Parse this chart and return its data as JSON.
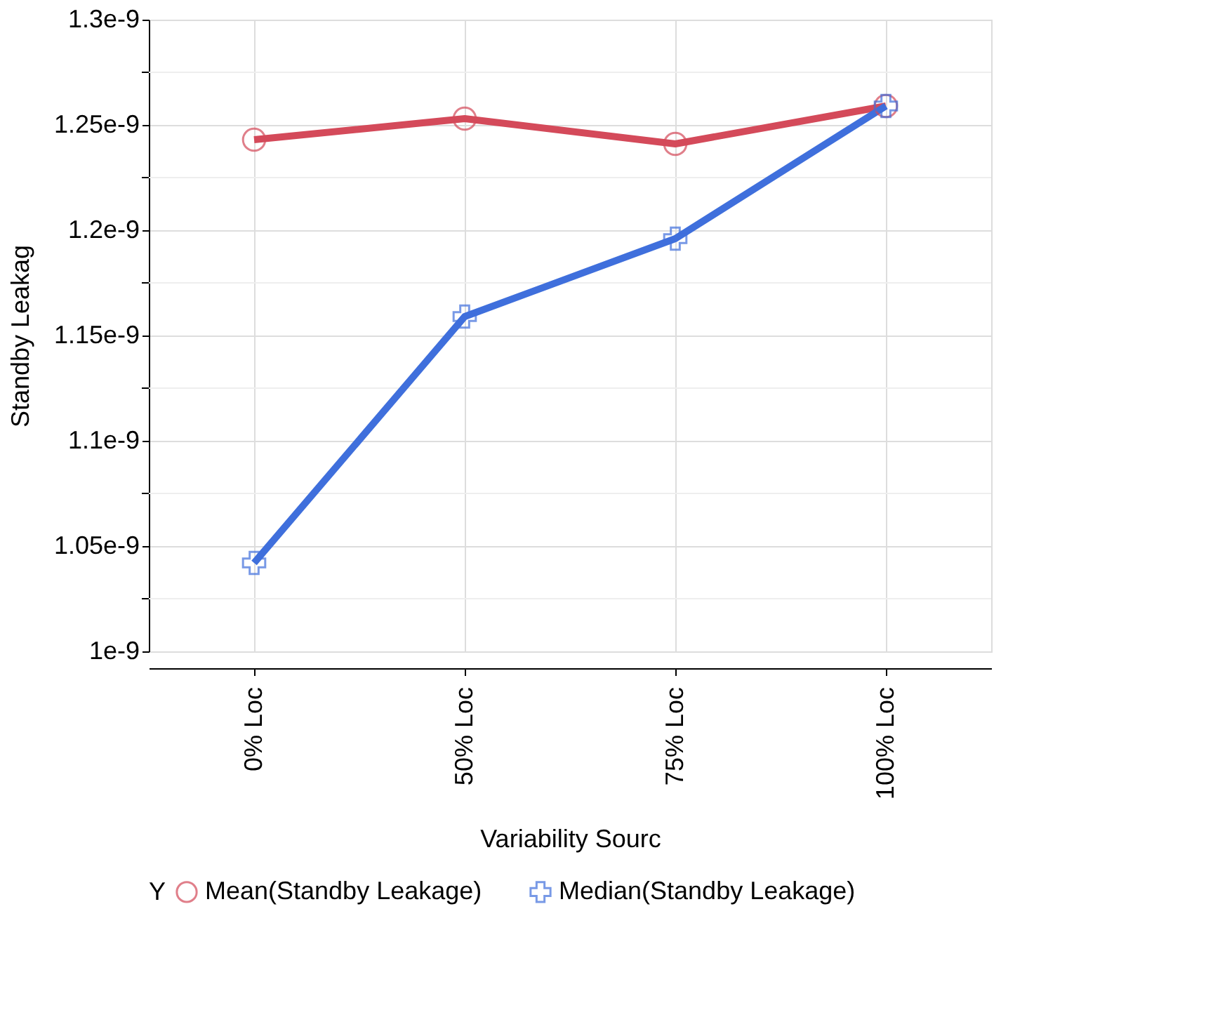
{
  "chart_data": {
    "type": "line",
    "xlabel": "Variability Sourc",
    "ylabel": "Standby Leakag",
    "legend_title": "Y",
    "categories": [
      "0% Loc",
      "50% Loc",
      "75% Loc",
      "100% Loc"
    ],
    "series": [
      {
        "name": "Mean(Standby Leakage)",
        "color": "#d44a5a",
        "marker": "circle",
        "values": [
          1.243e-09,
          1.253e-09,
          1.241e-09,
          1.259e-09
        ]
      },
      {
        "name": "Median(Standby Leakage)",
        "color": "#3f6fdc",
        "marker": "cross",
        "values": [
          1.042e-09,
          1.159e-09,
          1.196e-09,
          1.259e-09
        ]
      }
    ],
    "ylim": [
      1e-09,
      1.3e-09
    ],
    "yticks": [
      {
        "value": 1e-09,
        "label": "1e-9"
      },
      {
        "value": 1.025e-09,
        "label": null
      },
      {
        "value": 1.05e-09,
        "label": "1.05e-9"
      },
      {
        "value": 1.075e-09,
        "label": null
      },
      {
        "value": 1.1e-09,
        "label": "1.1e-9"
      },
      {
        "value": 1.125e-09,
        "label": null
      },
      {
        "value": 1.15e-09,
        "label": "1.15e-9"
      },
      {
        "value": 1.175e-09,
        "label": null
      },
      {
        "value": 1.2e-09,
        "label": "1.2e-9"
      },
      {
        "value": 1.225e-09,
        "label": null
      },
      {
        "value": 1.25e-09,
        "label": "1.25e-9"
      },
      {
        "value": 1.275e-09,
        "label": null
      },
      {
        "value": 1.3e-09,
        "label": "1.3e-9"
      }
    ],
    "grid": true,
    "legend": "bottom",
    "line_style": "solid"
  }
}
